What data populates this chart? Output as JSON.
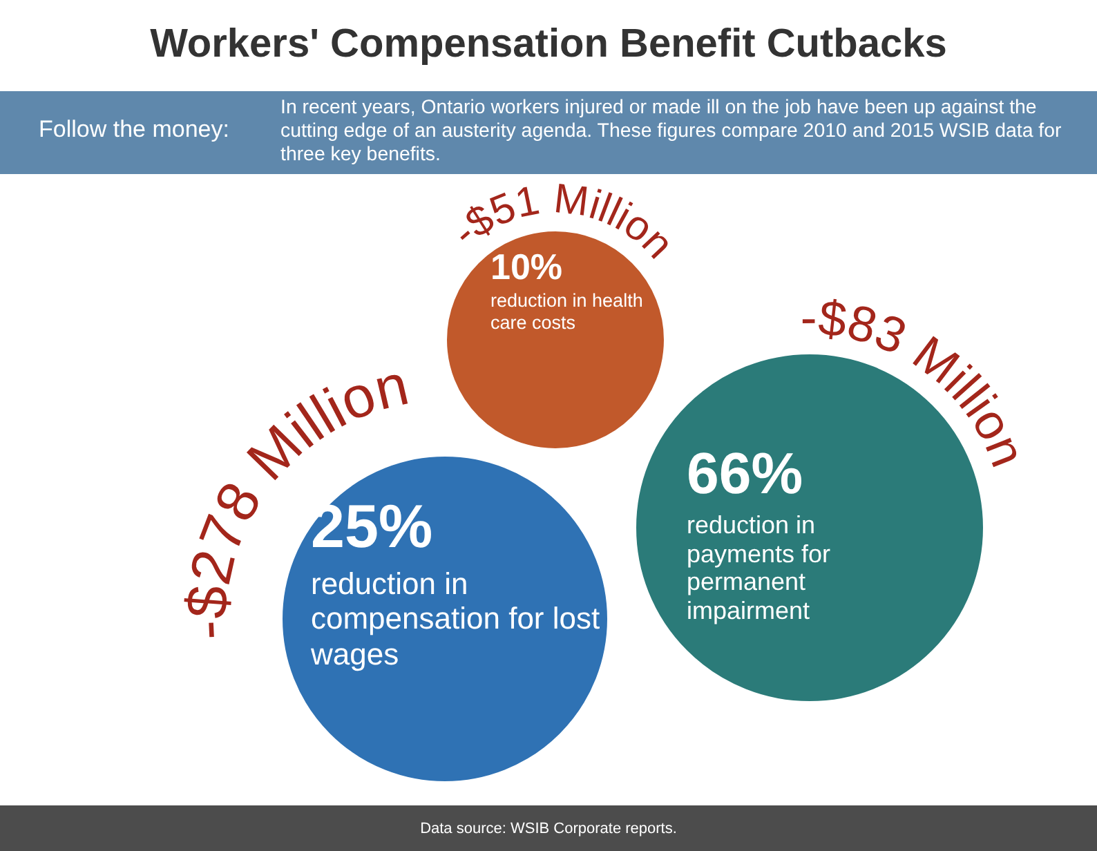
{
  "chart_data": {
    "type": "other",
    "title": "Workers' Compensation Benefit Cutbacks",
    "subtitle": "In recent years, Ontario workers injured or made ill on the job have been up against the cutting edge of an austerity agenda.  These figures compare 2010 and 2015 WSIB data for three key benefits.",
    "categories": [
      "reduction in compensation for lost wages",
      "reduction in health care costs",
      "reduction in payments for permanent impairment"
    ],
    "values": [
      25,
      10,
      66
    ],
    "value_labels": [
      "25%",
      "10%",
      "66%"
    ],
    "colors": [
      "#2f72b4",
      "#c1592b",
      "#2b7b79"
    ],
    "annotations": [
      "Follow the money:",
      {
        "text": "-$278 Million",
        "x": "reduction in compensation for lost wages"
      },
      {
        "text": "-$51 Million",
        "x": "reduction in health care costs"
      },
      {
        "text": "-$83 Million",
        "x": "reduction in payments for permanent impairment"
      },
      "Data source: WSIB Corporate reports."
    ]
  }
}
